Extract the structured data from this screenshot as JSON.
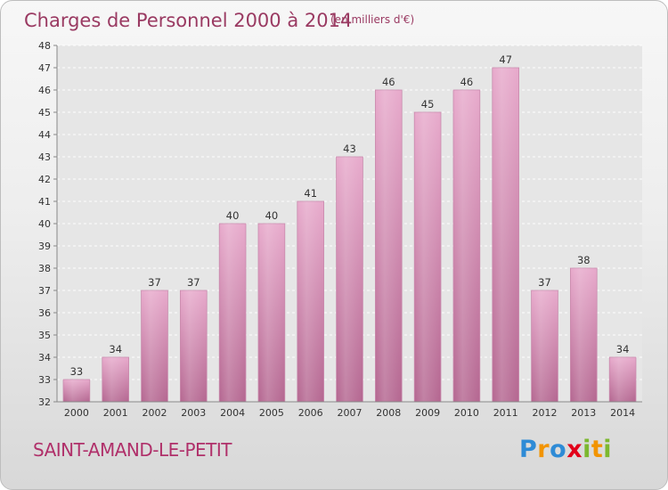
{
  "chart_data": {
    "type": "bar",
    "title": "Charges de Personnel 2000 à 2014",
    "subtitle": "(en milliers d'€)",
    "categories": [
      "2000",
      "2001",
      "2002",
      "2003",
      "2004",
      "2005",
      "2006",
      "2007",
      "2008",
      "2009",
      "2010",
      "2011",
      "2012",
      "2013",
      "2014"
    ],
    "values": [
      33,
      34,
      37,
      37,
      40,
      40,
      41,
      43,
      46,
      45,
      46,
      47,
      37,
      38,
      34
    ],
    "ylim": [
      32,
      48
    ],
    "yticks": [
      32,
      33,
      34,
      35,
      36,
      37,
      38,
      39,
      40,
      41,
      42,
      43,
      44,
      45,
      46,
      47,
      48
    ],
    "grid": true,
    "bar_color": "#d07aa8",
    "data_labels": true
  },
  "location": "SAINT-AMAND-LE-PETIT",
  "logo": {
    "letters": [
      "P",
      "r",
      "o",
      "x",
      "i",
      "t",
      "i"
    ],
    "colors": [
      "#2e8bd6",
      "#f29400",
      "#2e8bd6",
      "#e2001a",
      "#7cb82f",
      "#f29400",
      "#7cb82f"
    ]
  }
}
